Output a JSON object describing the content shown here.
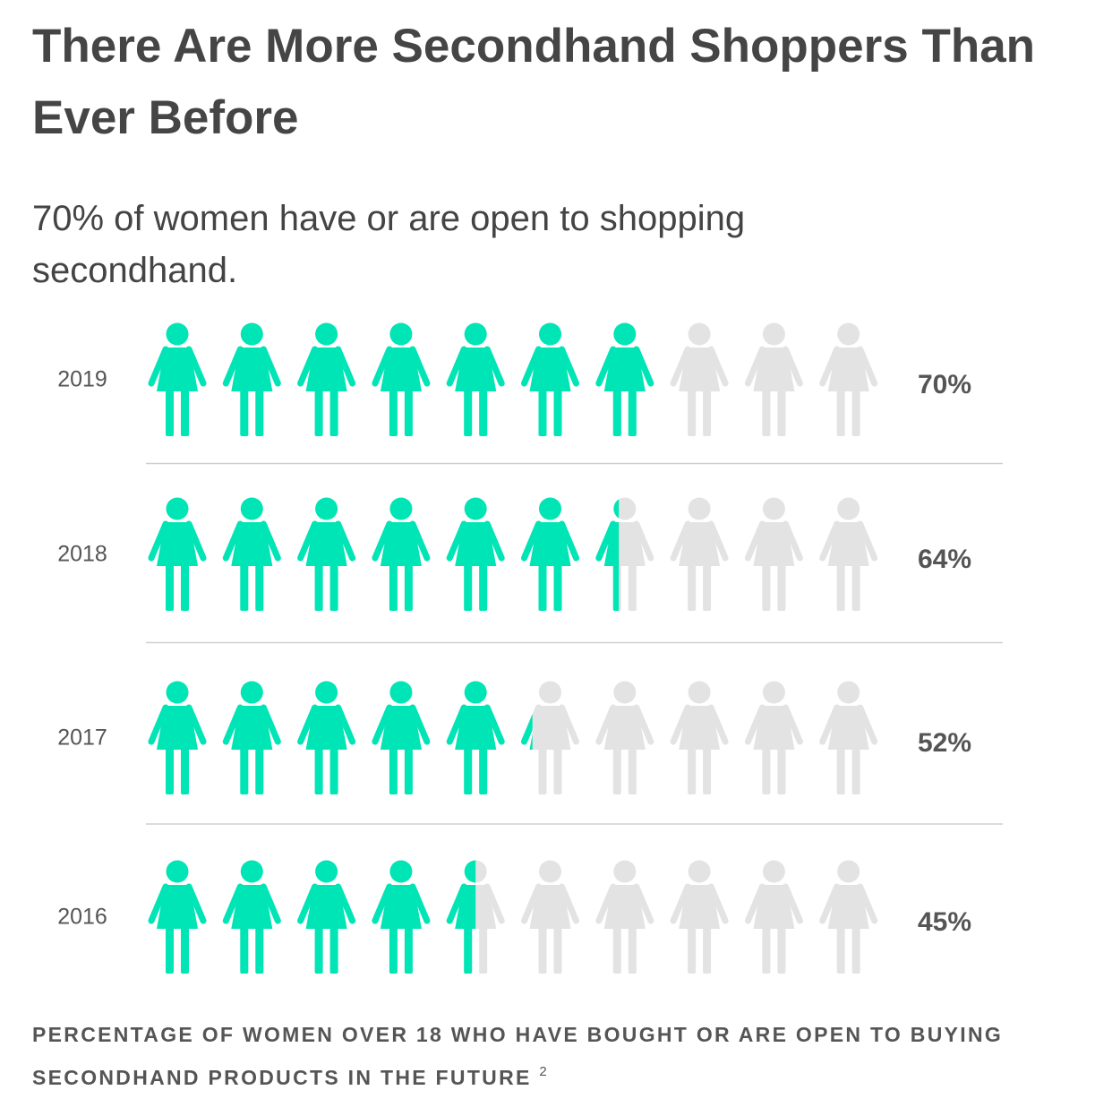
{
  "chart_data": {
    "type": "pictogram",
    "title": "There Are More Secondhand Shoppers Than Ever Before",
    "subtitle": "70% of women have or are open to shopping secondhand.",
    "categories": [
      "2019",
      "2018",
      "2017",
      "2016"
    ],
    "values": [
      70,
      64,
      52,
      45
    ],
    "value_labels": [
      "70%",
      "64%",
      "52%",
      "45%"
    ],
    "xlim": [
      0,
      100
    ],
    "color": "#00e5b6",
    "empty_color": "#e3e3e3",
    "note": "PERCENTAGE OF WOMEN OVER 18 WHO HAVE BOUGHT OR ARE OPEN TO BUYING SECONDHAND PRODUCTS IN THE FUTURE",
    "note_superscript": "2"
  }
}
